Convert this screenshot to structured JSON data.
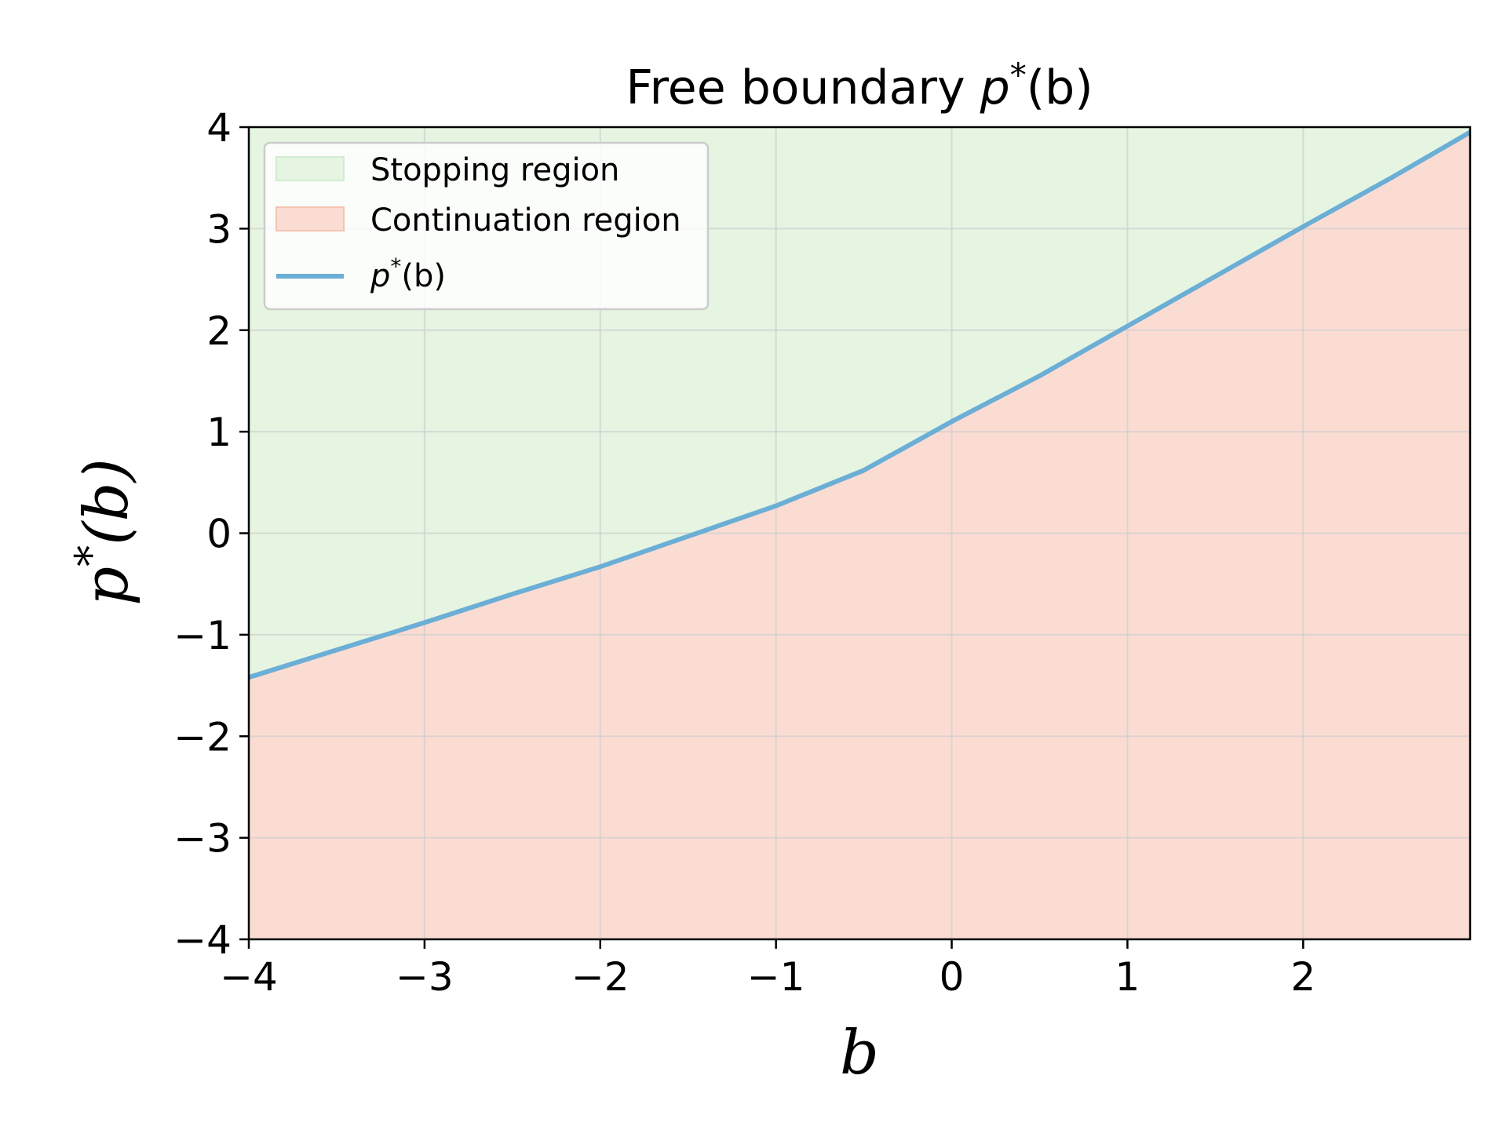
{
  "chart_data": {
    "type": "area",
    "title": "Free boundary p*(b)",
    "title_parts": {
      "prefix": "Free boundary ",
      "sym": "p",
      "sup": "*",
      "args": "(b)"
    },
    "xlabel": "b",
    "ylabel": "p*(b)",
    "ylabel_parts": {
      "sym": "p",
      "sup": "*",
      "args": "(b)"
    },
    "xlim": [
      -4,
      2.95
    ],
    "ylim": [
      -4,
      4
    ],
    "x_ticks": [
      -4,
      -3,
      -2,
      -1,
      0,
      1,
      2
    ],
    "x_tick_labels": [
      "−4",
      "−3",
      "−2",
      "−1",
      "0",
      "1",
      "2"
    ],
    "y_ticks": [
      -4,
      -3,
      -2,
      -1,
      0,
      1,
      2,
      3,
      4
    ],
    "y_tick_labels": [
      "−4",
      "−3",
      "−2",
      "−1",
      "0",
      "1",
      "2",
      "3",
      "4"
    ],
    "grid": true,
    "legend_position": "top-left",
    "colors": {
      "stopping": "#e5f5e1",
      "continuation": "#fbdcd3",
      "boundary": "#6baed6",
      "grid": "#cfcfcf",
      "axes": "#000000"
    },
    "series": [
      {
        "name": "p*(b)",
        "x": [
          -4.0,
          -3.5,
          -3.0,
          -2.5,
          -2.0,
          -1.5,
          -1.0,
          -0.5,
          0.0,
          0.5,
          1.0,
          1.5,
          2.0,
          2.5,
          2.95
        ],
        "y": [
          -1.42,
          -1.15,
          -0.88,
          -0.6,
          -0.33,
          -0.03,
          0.27,
          0.62,
          1.1,
          1.55,
          2.04,
          2.53,
          3.02,
          3.5,
          3.95
        ]
      }
    ],
    "regions": [
      {
        "name": "Stopping region",
        "bound": "above"
      },
      {
        "name": "Continuation region",
        "bound": "below"
      }
    ],
    "legend": {
      "stopping_label": "Stopping region",
      "continuation_label": "Continuation region",
      "line_parts": {
        "sym": "p",
        "sup": "*",
        "args": "(b)"
      }
    }
  }
}
